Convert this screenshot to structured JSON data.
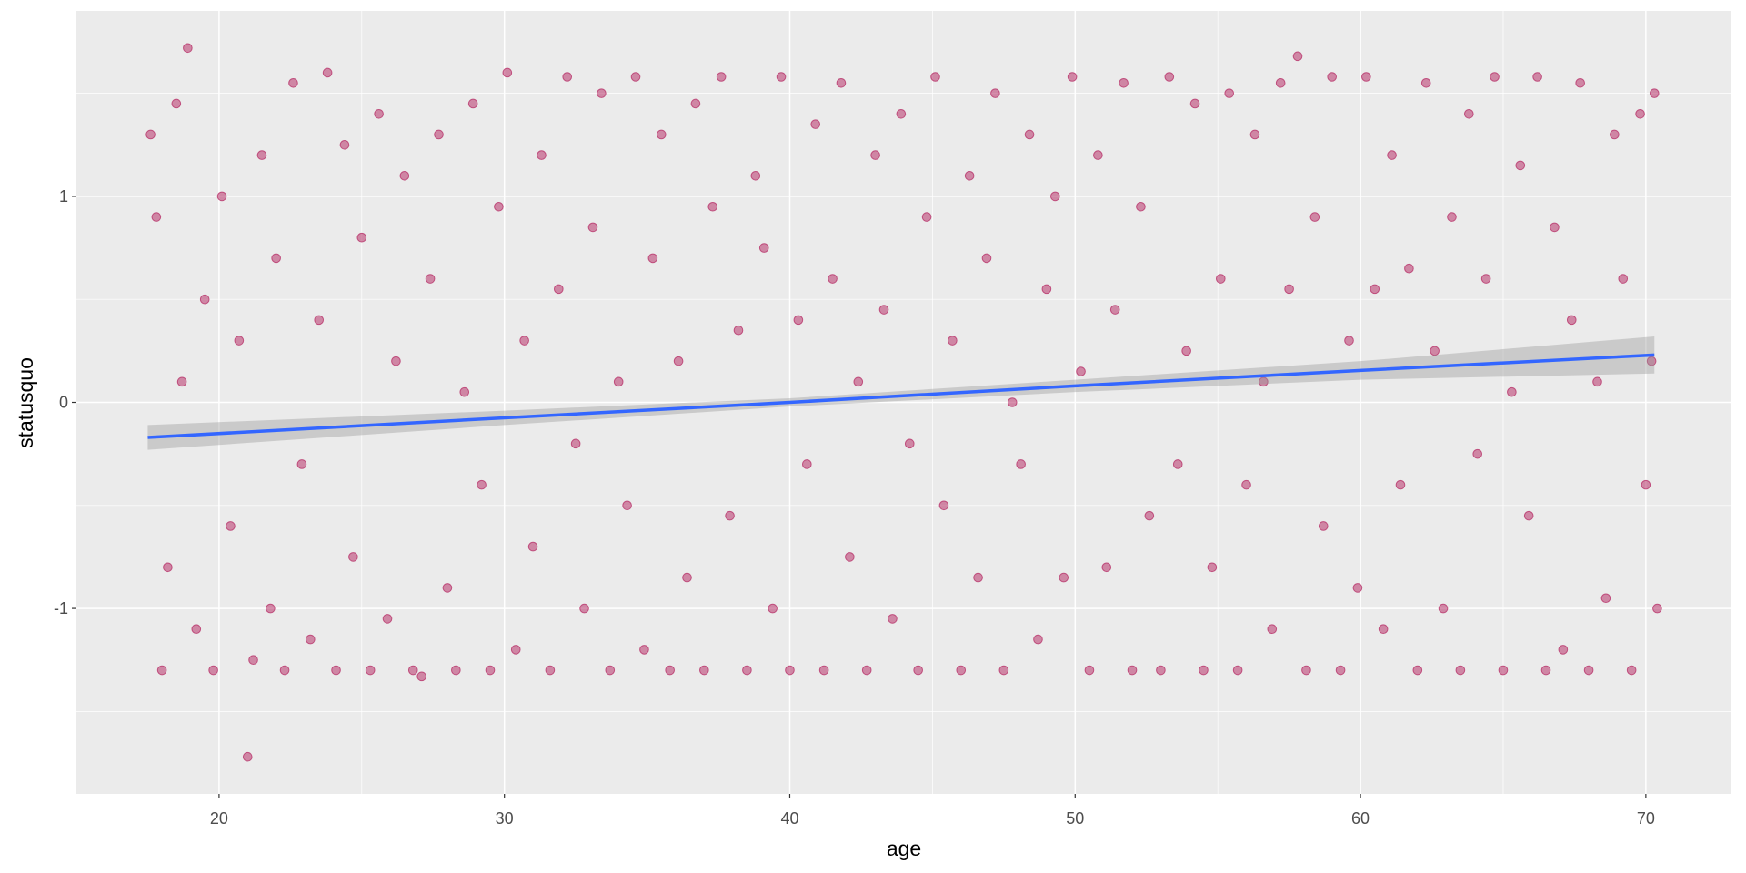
{
  "chart_data": {
    "type": "scatter",
    "x_label": "age",
    "y_label": "statusquo",
    "xlim": [
      15,
      73
    ],
    "ylim": [
      -1.9,
      1.9
    ],
    "xticks": [
      20,
      30,
      40,
      50,
      60,
      70
    ],
    "yticks": [
      -1,
      0,
      1
    ],
    "x_minor_grid": [
      25,
      35,
      45,
      55,
      65
    ],
    "y_minor_grid": [
      -1.5,
      -0.5,
      0.5,
      1.5
    ],
    "grid": true,
    "panel_color": "#ebebeb",
    "series": [
      {
        "color": "#b8336a",
        "x": [
          17.6,
          17.8,
          18,
          18.2,
          18.5,
          18.7,
          18.9,
          19.2,
          19.5,
          19.8,
          20.1,
          20.4,
          20.7,
          21,
          21.2,
          21.5,
          21.8,
          22,
          22.3,
          22.6,
          22.9,
          23.2,
          23.5,
          23.8,
          24.1,
          24.4,
          24.7,
          25,
          25.3,
          25.6,
          25.9,
          26.2,
          26.5,
          26.8,
          27.1,
          27.4,
          27.7,
          28,
          28.3,
          28.6,
          28.9,
          29.2,
          29.5,
          29.8,
          30.1,
          30.4,
          30.7,
          31,
          31.3,
          31.6,
          31.9,
          32.2,
          32.5,
          32.8,
          33.1,
          33.4,
          33.7,
          34,
          34.3,
          34.6,
          34.9,
          35.2,
          35.5,
          35.8,
          36.1,
          36.4,
          36.7,
          37,
          37.3,
          37.6,
          37.9,
          38.2,
          38.5,
          38.8,
          39.1,
          39.4,
          39.7,
          40,
          40.3,
          40.6,
          40.9,
          41.2,
          41.5,
          41.8,
          42.1,
          42.4,
          42.7,
          43,
          43.3,
          43.6,
          43.9,
          44.2,
          44.5,
          44.8,
          45.1,
          45.4,
          45.7,
          46,
          46.3,
          46.6,
          46.9,
          47.2,
          47.5,
          47.8,
          48.1,
          48.4,
          48.7,
          49,
          49.3,
          49.6,
          49.9,
          50.2,
          50.5,
          50.8,
          51.1,
          51.4,
          51.7,
          52,
          52.3,
          52.6,
          53,
          53.3,
          53.6,
          53.9,
          54.2,
          54.5,
          54.8,
          55.1,
          55.4,
          55.7,
          56,
          56.3,
          56.6,
          56.9,
          57.2,
          57.5,
          57.8,
          58.1,
          58.4,
          58.7,
          59,
          59.3,
          59.6,
          59.9,
          60.2,
          60.5,
          60.8,
          61.1,
          61.4,
          61.7,
          62,
          62.3,
          62.6,
          62.9,
          63.2,
          63.5,
          63.8,
          64.1,
          64.4,
          64.7,
          65,
          65.3,
          65.6,
          65.9,
          66.2,
          66.5,
          66.8,
          67.1,
          67.4,
          67.7,
          68,
          68.3,
          68.6,
          68.9,
          69.2,
          69.5,
          69.8,
          70,
          70.2,
          70.3,
          70.4
        ],
        "values": [
          1.3,
          0.9,
          -1.3,
          -0.8,
          1.45,
          0.1,
          1.72,
          -1.1,
          0.5,
          -1.3,
          1.0,
          -0.6,
          0.3,
          -1.72,
          -1.25,
          1.2,
          -1.0,
          0.7,
          -1.3,
          1.55,
          -0.3,
          -1.15,
          0.4,
          1.6,
          -1.3,
          1.25,
          -0.75,
          0.8,
          -1.3,
          1.4,
          -1.05,
          0.2,
          1.1,
          -1.3,
          -1.33,
          0.6,
          1.3,
          -0.9,
          -1.3,
          0.05,
          1.45,
          -0.4,
          -1.3,
          0.95,
          1.6,
          -1.2,
          0.3,
          -0.7,
          1.2,
          -1.3,
          0.55,
          1.58,
          -0.2,
          -1.0,
          0.85,
          1.5,
          -1.3,
          0.1,
          -0.5,
          1.58,
          -1.2,
          0.7,
          1.3,
          -1.3,
          0.2,
          -0.85,
          1.45,
          -1.3,
          0.95,
          1.58,
          -0.55,
          0.35,
          -1.3,
          1.1,
          0.75,
          -1.0,
          1.58,
          -1.3,
          0.4,
          -0.3,
          1.35,
          -1.3,
          0.6,
          1.55,
          -0.75,
          0.1,
          -1.3,
          1.2,
          0.45,
          -1.05,
          1.4,
          -0.2,
          -1.3,
          0.9,
          1.58,
          -0.5,
          0.3,
          -1.3,
          1.1,
          -0.85,
          0.7,
          1.5,
          -1.3,
          0.0,
          -0.3,
          1.3,
          -1.15,
          0.55,
          1.0,
          -0.85,
          1.58,
          0.15,
          -1.3,
          1.2,
          -0.8,
          0.45,
          1.55,
          -1.3,
          0.95,
          -0.55,
          -1.3,
          1.58,
          -0.3,
          0.25,
          1.45,
          -1.3,
          -0.8,
          0.6,
          1.5,
          -1.3,
          -0.4,
          1.3,
          0.1,
          -1.1,
          1.55,
          0.55,
          1.68,
          -1.3,
          0.9,
          -0.6,
          1.58,
          -1.3,
          0.3,
          -0.9,
          1.58,
          0.55,
          -1.1,
          1.2,
          -0.4,
          0.65,
          -1.3,
          1.55,
          0.25,
          -1.0,
          0.9,
          -1.3,
          1.4,
          -0.25,
          0.6,
          1.58,
          -1.3,
          0.05,
          1.15,
          -0.55,
          1.58,
          -1.3,
          0.85,
          -1.2,
          0.4,
          1.55,
          -1.3,
          0.1,
          -0.95,
          1.3,
          0.6,
          -1.3,
          1.4,
          -0.4,
          0.2,
          1.5,
          -1.0
        ]
      },
      {
        "type": "smooth",
        "color": "#3366ff",
        "band_color": "#999999",
        "x": [
          17.5,
          30,
          40,
          50,
          60,
          70.3
        ],
        "values": [
          -0.17,
          -0.075,
          0.0,
          0.08,
          0.155,
          0.23
        ],
        "lower": [
          -0.23,
          -0.11,
          -0.02,
          0.05,
          0.11,
          0.14
        ],
        "upper": [
          -0.11,
          -0.04,
          0.02,
          0.11,
          0.2,
          0.32
        ]
      }
    ]
  }
}
